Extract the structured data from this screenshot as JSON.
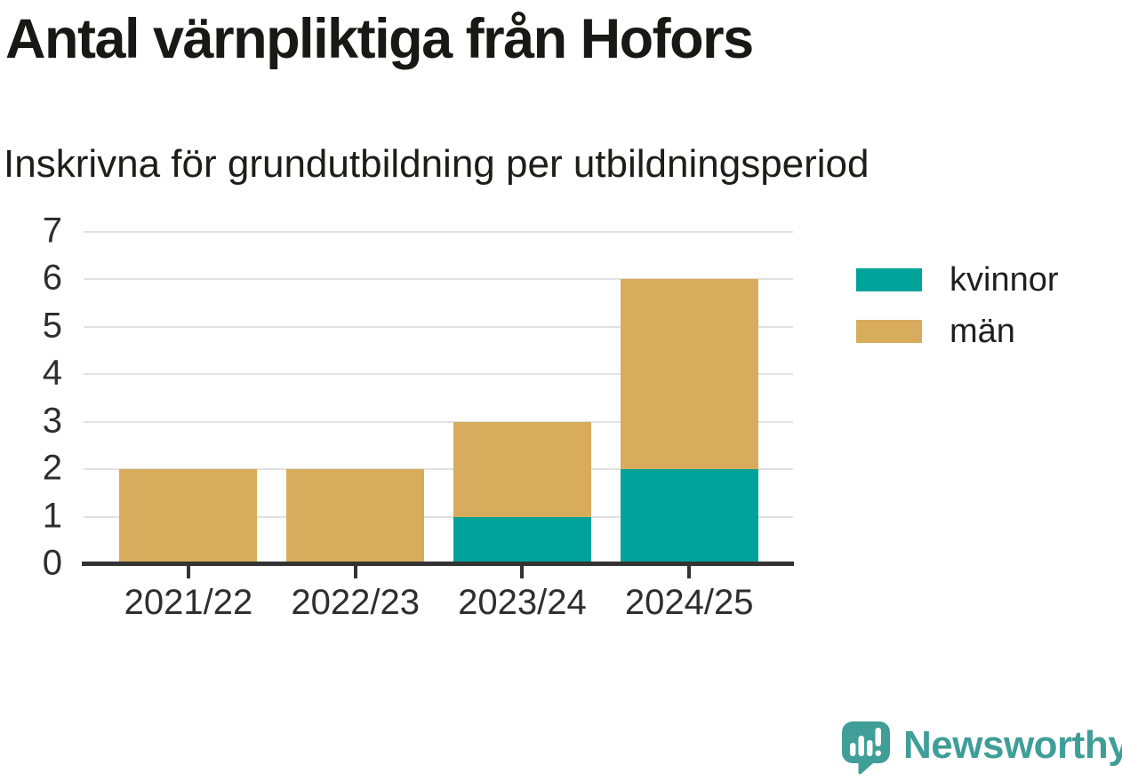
{
  "chart_data": {
    "type": "bar",
    "stacked": true,
    "title": "Antal värnpliktiga från Hofors",
    "subtitle": "Inskrivna för grundutbildning per utbildningsperiod",
    "categories": [
      "2021/22",
      "2022/23",
      "2023/24",
      "2024/25"
    ],
    "series": [
      {
        "name": "kvinnor",
        "color": "#00a399",
        "values": [
          0,
          0,
          1,
          2
        ]
      },
      {
        "name": "män",
        "color": "#d7ac5c",
        "values": [
          2,
          2,
          2,
          4
        ]
      }
    ],
    "totals": [
      2,
      2,
      3,
      6
    ],
    "xlabel": "",
    "ylabel": "",
    "ylim": [
      0,
      7
    ],
    "yticks": [
      0,
      1,
      2,
      3,
      4,
      5,
      6,
      7
    ],
    "grid": true,
    "legend_position": "right",
    "axis_color": "#333333",
    "gridline_color": "#e2e2e2",
    "text_color": "#2e2e2e"
  },
  "branding": {
    "wordmark": "Newsworthy",
    "brand_color": "#3f9e97",
    "icon": "newsworthy-speech-bubble-chart-icon"
  }
}
